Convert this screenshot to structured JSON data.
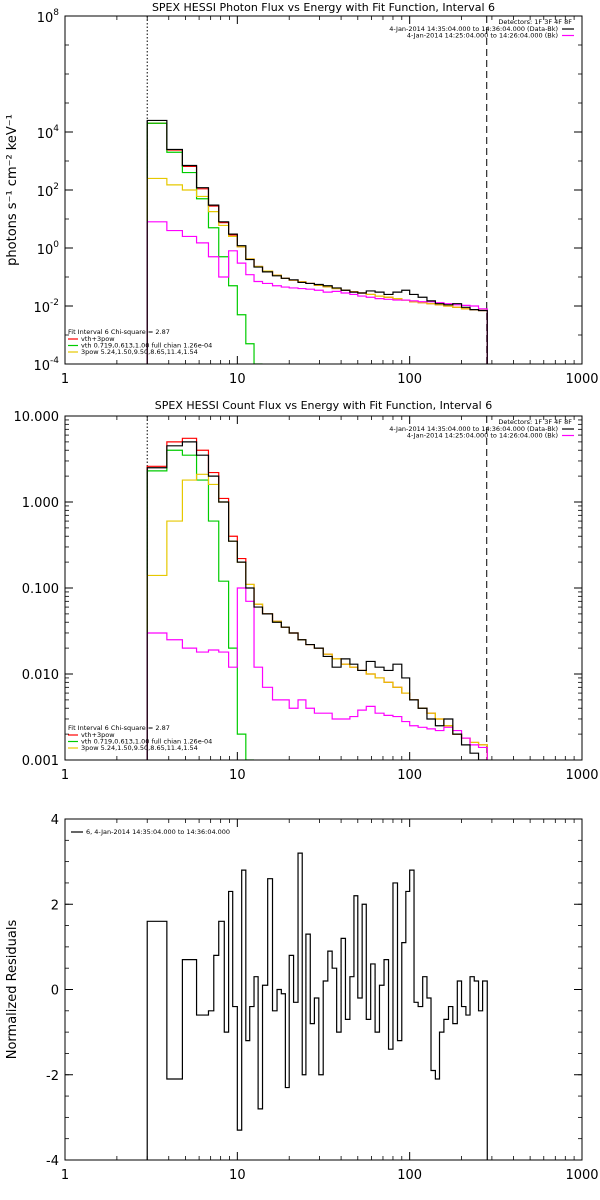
{
  "chart_data": [
    {
      "id": "photon",
      "type": "line",
      "step": true,
      "title": "SPEX HESSI Photon Flux vs Energy with Fit Function, Interval 6",
      "ylabel": "photons s⁻¹ cm⁻² keV⁻¹",
      "xlabel": "",
      "xscale": "log",
      "yscale": "log",
      "xlim": [
        1,
        1000
      ],
      "ylim": [
        0.0001,
        100000000
      ],
      "x_ticks": [
        1,
        10,
        100,
        1000
      ],
      "x_tick_labels": [
        "1",
        "10",
        "100",
        "1000"
      ],
      "y_ticks": [
        0.0001,
        0.01,
        1,
        100,
        10000,
        100000000
      ],
      "y_tick_labels": [
        {
          "base": "10",
          "exp": "-4"
        },
        {
          "base": "10",
          "exp": "-2"
        },
        {
          "base": "10",
          "exp": "0"
        },
        {
          "base": "10",
          "exp": "2"
        },
        {
          "base": "10",
          "exp": "4"
        },
        {
          "base": "10",
          "exp": "8"
        }
      ],
      "vlines": [
        {
          "x": 3,
          "style": "dotted"
        },
        {
          "x": 280,
          "style": "dashed"
        }
      ],
      "legend_top_right": {
        "title": "Detectors: 1F 3F 4F 8F",
        "entries": [
          {
            "text": "4-Jan-2014 14:35:04.000 to 14:36:04.000 (Data-Bk)",
            "color": "#000000"
          },
          {
            "text": "4-Jan-2014 14:25:04.000 to 14:26:04.000 (Bk)",
            "color": "#ff00ff"
          }
        ]
      },
      "legend_bottom_left": {
        "title": "Fit Interval 6    Chi-square = 2.87",
        "entries": [
          {
            "text": "vth+3pow",
            "color": "#ff0000"
          },
          {
            "text": "vth 0.719,0.613,1.00  full chian 1.26e-04",
            "color": "#00cc00"
          },
          {
            "text": "3pow 5.24,1.50,9.50,8.65,11.4,1.54",
            "color": "#e6c800"
          }
        ]
      },
      "x_edges": [
        3,
        3.9,
        4.8,
        5.8,
        6.8,
        7.8,
        8.9,
        10,
        11.2,
        12.5,
        14,
        16,
        18,
        20,
        22.5,
        25,
        28,
        31.5,
        35.5,
        40,
        45,
        50,
        56,
        63,
        71,
        80,
        90,
        100,
        112,
        126,
        141,
        158,
        178,
        200,
        224,
        251,
        282
      ],
      "series": [
        {
          "name": "data",
          "color": "#000000",
          "values": [
            25000,
            2500,
            700,
            120,
            30,
            8,
            3,
            1.2,
            0.4,
            0.22,
            0.15,
            0.11,
            0.09,
            0.08,
            0.065,
            0.06,
            0.055,
            0.05,
            0.042,
            0.035,
            0.03,
            0.028,
            0.033,
            0.03,
            0.025,
            0.03,
            0.035,
            0.025,
            0.02,
            0.015,
            0.012,
            0.011,
            0.012,
            0.009,
            0.0075,
            0.007
          ]
        },
        {
          "name": "vth+3pow",
          "color": "#ff0000",
          "values": [
            20000,
            2400,
            650,
            110,
            28,
            7.5,
            2.8,
            1.1,
            0.42,
            0.23,
            0.16,
            0.115,
            0.09,
            0.078,
            0.068,
            0.06,
            0.052,
            0.046,
            0.04,
            0.035,
            0.031,
            0.028,
            0.025,
            0.022,
            0.02,
            0.018,
            0.016,
            0.014,
            0.013,
            0.012,
            0.011,
            0.01,
            0.009,
            0.008,
            0.0075,
            0.007
          ]
        },
        {
          "name": "vth",
          "color": "#00cc00",
          "values": [
            20000,
            2000,
            400,
            50,
            5,
            0.5,
            0.05,
            0.005,
            0.0005,
            5e-05
          ]
        },
        {
          "name": "3pow",
          "color": "#e6c800",
          "values": [
            250,
            150,
            100,
            60,
            18,
            6,
            2.5,
            1.1,
            0.42,
            0.23,
            0.16,
            0.115,
            0.09,
            0.078,
            0.068,
            0.06,
            0.052,
            0.046,
            0.04,
            0.035,
            0.031,
            0.028,
            0.025,
            0.022,
            0.02,
            0.018,
            0.016,
            0.014,
            0.013,
            0.012,
            0.011,
            0.01,
            0.009,
            0.008,
            0.0075,
            0.007
          ]
        },
        {
          "name": "background",
          "color": "#ff00ff",
          "values": [
            8,
            4,
            2.5,
            1.5,
            0.5,
            0.1,
            0.8,
            0.3,
            0.12,
            0.07,
            0.06,
            0.05,
            0.045,
            0.042,
            0.04,
            0.038,
            0.035,
            0.03,
            0.032,
            0.028,
            0.025,
            0.022,
            0.02,
            0.018,
            0.017,
            0.016,
            0.016,
            0.015,
            0.014,
            0.014,
            0.013,
            0.012,
            0.011,
            0.0105,
            0.01,
            0.008
          ]
        }
      ]
    },
    {
      "id": "count",
      "type": "line",
      "step": true,
      "title": "SPEX HESSI Count Flux vs Energy with Fit Function, Interval 6",
      "ylabel": "",
      "xlabel": "",
      "xscale": "log",
      "yscale": "log",
      "xlim": [
        1,
        1000
      ],
      "ylim": [
        0.001,
        10
      ],
      "x_ticks": [
        1,
        10,
        100,
        1000
      ],
      "x_tick_labels": [
        "1",
        "10",
        "100",
        "1000"
      ],
      "y_ticks": [
        0.001,
        0.01,
        0.1,
        1,
        10
      ],
      "y_tick_labels": [
        "0.001",
        "0.010",
        "0.100",
        "1.000",
        "10.000"
      ],
      "vlines": [
        {
          "x": 3,
          "style": "dotted"
        },
        {
          "x": 280,
          "style": "dashed"
        }
      ],
      "legend_top_right": {
        "title": "Detectors: 1F 3F 4F 8F",
        "entries": [
          {
            "text": "4-Jan-2014 14:35:04.000 to 14:36:04.000 (Data-Bk)",
            "color": "#000000"
          },
          {
            "text": "4-Jan-2014 14:25:04.000 to 14:26:04.000 (Bk)",
            "color": "#ff00ff"
          }
        ]
      },
      "legend_bottom_left": {
        "title": "Fit Interval 6    Chi-square = 2.87",
        "entries": [
          {
            "text": "vth+3pow",
            "color": "#ff0000"
          },
          {
            "text": "vth 0.719,0.613,1.00  full chian 1.26e-04",
            "color": "#00cc00"
          },
          {
            "text": "3pow 5.24,1.50,9.50,8.65,11.4,1.54",
            "color": "#e6c800"
          }
        ]
      },
      "x_edges": [
        3,
        3.9,
        4.8,
        5.8,
        6.8,
        7.8,
        8.9,
        10,
        11.2,
        12.5,
        14,
        16,
        18,
        20,
        22.5,
        25,
        28,
        31.5,
        35.5,
        40,
        45,
        50,
        56,
        63,
        71,
        80,
        90,
        100,
        112,
        126,
        141,
        158,
        178,
        200,
        224,
        251,
        282
      ],
      "series": [
        {
          "name": "data",
          "color": "#000000",
          "values": [
            2.5,
            4.5,
            5.0,
            3.5,
            2.0,
            1.0,
            0.35,
            0.2,
            0.1,
            0.06,
            0.05,
            0.04,
            0.035,
            0.03,
            0.025,
            0.022,
            0.02,
            0.016,
            0.012,
            0.015,
            0.013,
            0.011,
            0.014,
            0.012,
            0.011,
            0.013,
            0.009,
            0.005,
            0.004,
            0.003,
            0.0025,
            0.003,
            0.002,
            0.0015,
            0.0012,
            0.001
          ]
        },
        {
          "name": "vth+3pow",
          "color": "#ff0000",
          "values": [
            2.6,
            5.0,
            5.5,
            4.0,
            2.2,
            1.1,
            0.4,
            0.22,
            0.11,
            0.065,
            0.05,
            0.041,
            0.035,
            0.03,
            0.025,
            0.022,
            0.02,
            0.017,
            0.015,
            0.013,
            0.012,
            0.011,
            0.01,
            0.009,
            0.008,
            0.007,
            0.006,
            0.005,
            0.004,
            0.0035,
            0.003,
            0.0025,
            0.002,
            0.0018,
            0.0016,
            0.0015
          ]
        },
        {
          "name": "vth",
          "color": "#00cc00",
          "values": [
            2.3,
            4.0,
            3.5,
            1.8,
            0.6,
            0.12,
            0.02,
            0.002,
            0.0005
          ]
        },
        {
          "name": "3pow",
          "color": "#e6c800",
          "values": [
            0.14,
            0.6,
            1.8,
            2.1,
            1.6,
            1.0,
            0.35,
            0.2,
            0.11,
            0.065,
            0.05,
            0.041,
            0.035,
            0.03,
            0.025,
            0.022,
            0.02,
            0.017,
            0.015,
            0.013,
            0.012,
            0.011,
            0.01,
            0.009,
            0.008,
            0.007,
            0.006,
            0.005,
            0.004,
            0.0035,
            0.003,
            0.0025,
            0.002,
            0.0018,
            0.0016,
            0.0015
          ]
        },
        {
          "name": "background",
          "color": "#ff00ff",
          "values": [
            0.03,
            0.025,
            0.02,
            0.018,
            0.019,
            0.018,
            0.012,
            0.1,
            0.07,
            0.012,
            0.007,
            0.005,
            0.005,
            0.004,
            0.005,
            0.004,
            0.0035,
            0.0035,
            0.003,
            0.003,
            0.0032,
            0.0038,
            0.0042,
            0.0035,
            0.0033,
            0.0032,
            0.0028,
            0.0025,
            0.0024,
            0.0023,
            0.0022,
            0.0024,
            0.0022,
            0.0018,
            0.0015,
            0.0014
          ]
        }
      ]
    },
    {
      "id": "resid",
      "type": "line",
      "step": true,
      "title": "",
      "ylabel": "Normalized Residuals",
      "xlabel": "",
      "xscale": "log",
      "yscale": "linear",
      "xlim": [
        1,
        1000
      ],
      "ylim": [
        -4,
        4
      ],
      "x_ticks": [
        1,
        10,
        100,
        1000
      ],
      "x_tick_labels": [
        "1",
        "10",
        "100",
        "1000"
      ],
      "y_ticks": [
        -4,
        -2,
        0,
        2,
        4
      ],
      "y_tick_labels": [
        "-4",
        "-2",
        "0",
        "2",
        "4"
      ],
      "legend_top_left": {
        "entries": [
          {
            "text": "6,  4-Jan-2014 14:35:04.000 to 14:36:04.000",
            "color": "#000000"
          }
        ]
      },
      "x_edges": [
        3,
        3.9,
        4.8,
        5.8,
        6.8,
        7.3,
        7.8,
        8.4,
        8.9,
        9.4,
        10,
        10.6,
        11.2,
        11.8,
        12.5,
        13.2,
        14,
        15,
        16,
        17,
        18,
        19,
        20,
        21.2,
        22.5,
        23.8,
        25,
        26.5,
        28,
        29.7,
        31.5,
        33.5,
        35.5,
        37.7,
        40,
        42.4,
        45,
        47.5,
        50,
        53,
        56,
        59.4,
        63,
        66.8,
        71,
        75.4,
        80,
        85,
        90,
        95,
        100,
        106,
        112,
        119,
        126,
        133,
        141,
        149,
        158,
        168,
        178,
        189,
        200,
        212,
        224,
        237,
        251,
        265,
        282
      ],
      "series": [
        {
          "name": "6,  4-Jan-2014 14:35:04.000 to 14:36:04.000",
          "color": "#000000",
          "values": [
            1.6,
            -2.1,
            0.7,
            -0.6,
            -0.5,
            0.8,
            1.6,
            -1.0,
            2.3,
            -0.4,
            -3.3,
            2.8,
            -1.2,
            -0.4,
            0.3,
            -2.8,
            0.1,
            2.6,
            -0.5,
            0.0,
            -0.1,
            -2.3,
            0.8,
            -0.3,
            3.2,
            -2.0,
            1.3,
            -0.8,
            -0.2,
            -2.0,
            0.2,
            0.9,
            0.5,
            -1.0,
            1.2,
            -0.7,
            0.3,
            2.2,
            -0.2,
            2.0,
            -0.7,
            0.6,
            -1.0,
            0.1,
            0.7,
            -1.4,
            2.5,
            -1.2,
            1.1,
            2.3,
            2.8,
            -0.3,
            -0.4,
            0.3,
            -0.2,
            -1.9,
            -2.1,
            -1.0,
            -0.7,
            -0.4,
            -0.8,
            0.2,
            -0.4,
            -0.6,
            0.3,
            0.2,
            -0.5,
            0.2
          ]
        }
      ]
    }
  ]
}
